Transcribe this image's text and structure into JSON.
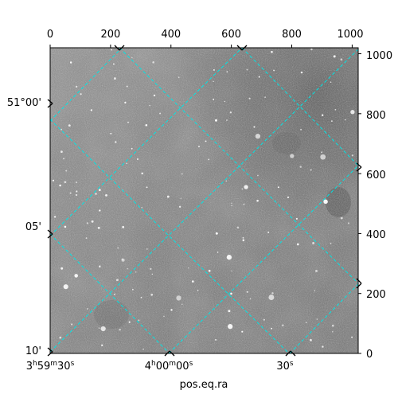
{
  "figure": {
    "xlabel": "pos.eq.ra",
    "pixel_axis": {
      "top_ticks": [
        "0",
        "200",
        "400",
        "600",
        "800",
        "1000"
      ],
      "right_ticks": [
        "0",
        "200",
        "400",
        "600",
        "800",
        "1000"
      ],
      "range": [
        0,
        1020
      ]
    },
    "ra_ticks": [
      {
        "h": "3",
        "m": "59",
        "s": "30"
      },
      {
        "h": "4",
        "m": "00",
        "s": "00"
      },
      {
        "s": "30"
      }
    ],
    "dec_ticks": [
      "51°00'",
      "05'",
      "10'"
    ],
    "grid_color": "#00e5e5",
    "image_palette": "grayscale"
  }
}
